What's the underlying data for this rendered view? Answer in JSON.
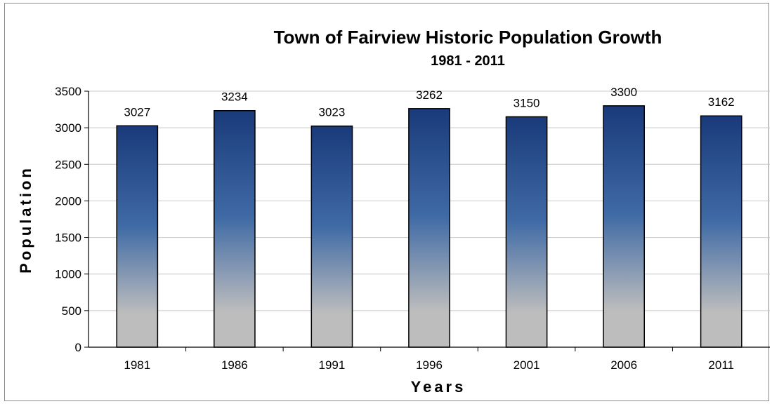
{
  "chart_data": {
    "type": "bar",
    "title": "Town of Fairview Historic Population Growth",
    "subtitle": "1981 - 2011",
    "xlabel": "Years",
    "ylabel": "Population",
    "categories": [
      "1981",
      "1986",
      "1991",
      "1996",
      "2001",
      "2006",
      "2011"
    ],
    "values": [
      3027,
      3234,
      3023,
      3262,
      3150,
      3300,
      3162
    ],
    "data_labels": [
      "3027",
      "3234",
      "3023",
      "3262",
      "3150",
      "3300",
      "3162"
    ],
    "ylim": [
      0,
      3500
    ],
    "yticks": [
      0,
      500,
      1000,
      1500,
      2000,
      2500,
      3000,
      3500
    ],
    "ytick_labels": [
      "0",
      "500",
      "1000",
      "1500",
      "2000",
      "2500",
      "3000",
      "3500"
    ],
    "grid": true,
    "legend": "none",
    "colors": {
      "bar_top": "#1a3a7a",
      "bar_mid": "#3f6aa5",
      "bar_bottom": "#bdbdbd",
      "grid": "#c8c8c8"
    }
  }
}
